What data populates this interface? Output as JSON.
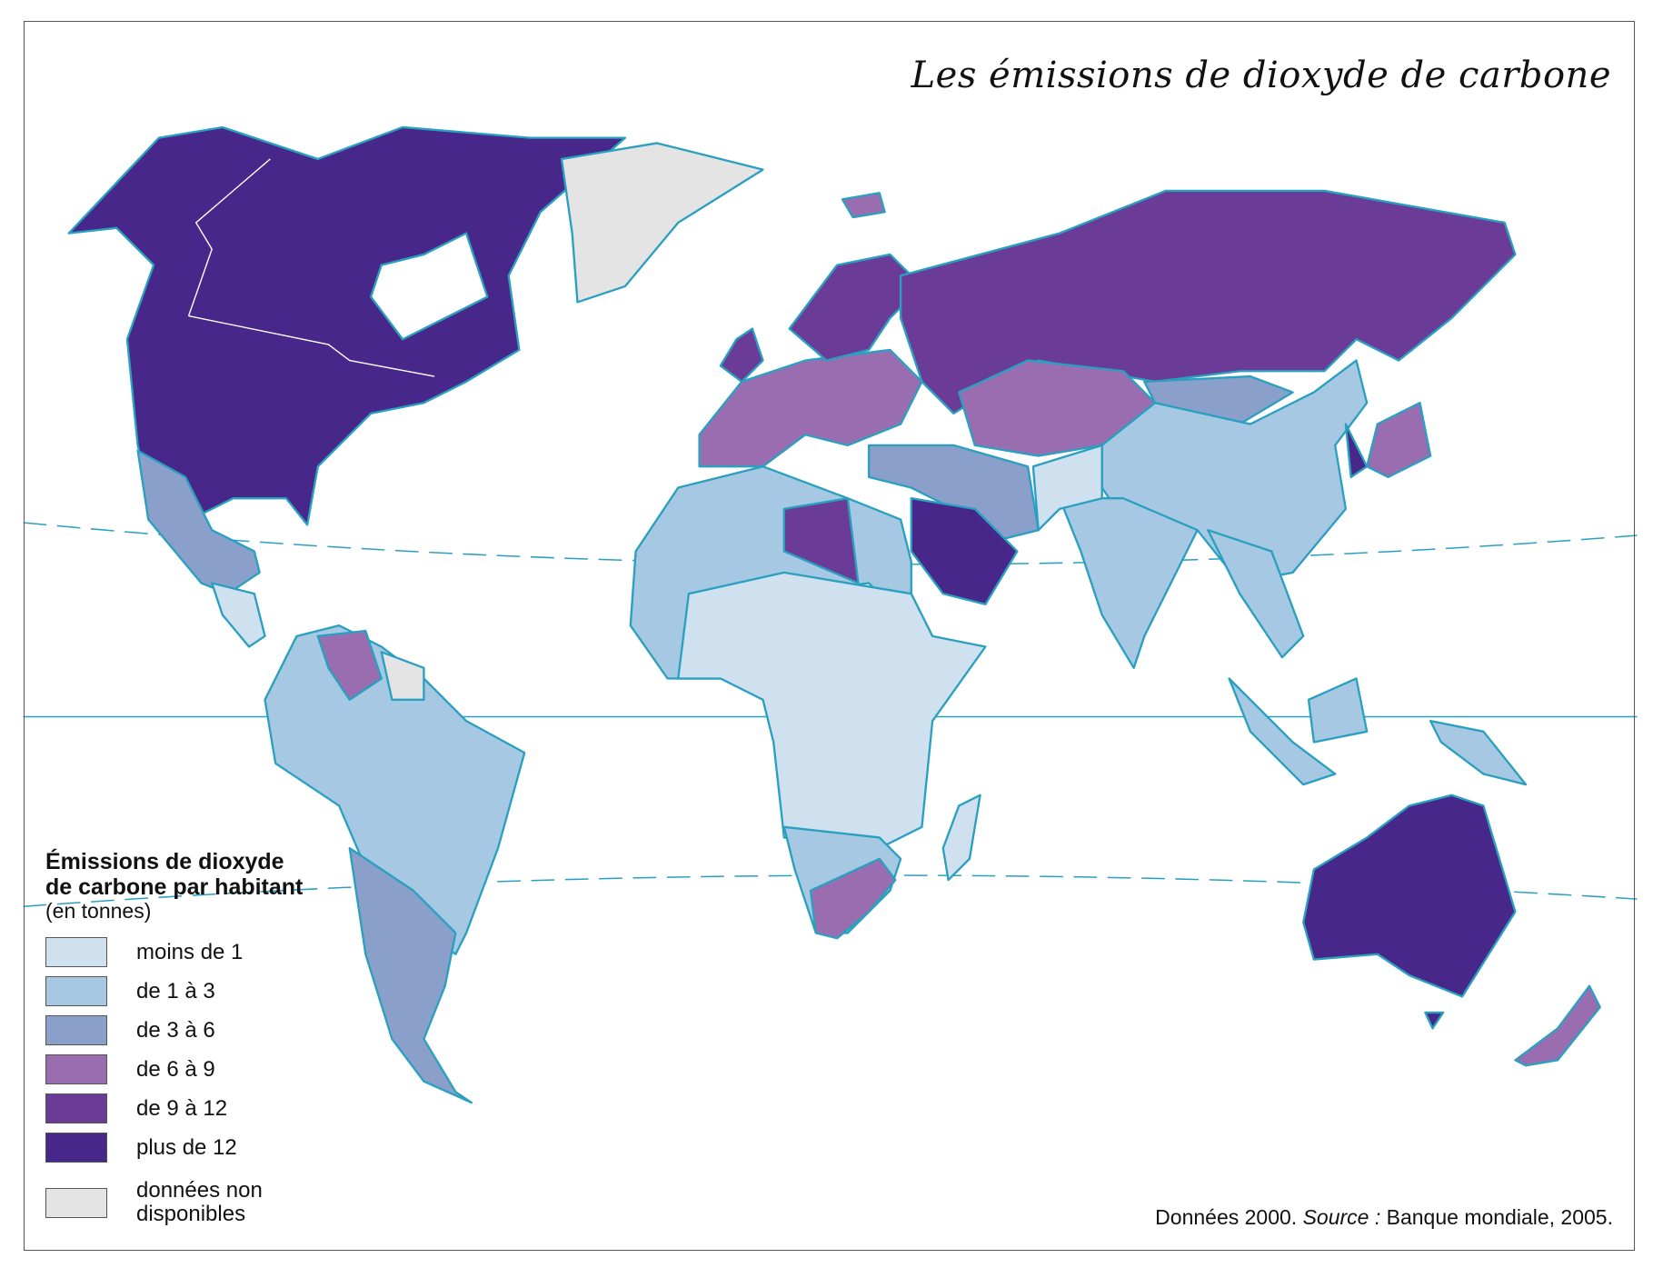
{
  "title": "Les émissions de dioxyde de carbone",
  "legend": {
    "title_line1": "Émissions de dioxyde",
    "title_line2": "de carbone par habitant",
    "unit": "(en tonnes)",
    "items": [
      {
        "label": "moins de 1",
        "color": "#cfe1ef"
      },
      {
        "label": "de 1 à 3",
        "color": "#a6c8e2"
      },
      {
        "label": "de 3 à 6",
        "color": "#8b9fcb"
      },
      {
        "label": "de 6 à 9",
        "color": "#9a6db0"
      },
      {
        "label": "de 9 à 12",
        "color": "#6a3c98"
      },
      {
        "label": "plus de 12",
        "color": "#47288a"
      }
    ],
    "na": {
      "label_line1": "données non",
      "label_line2": "disponibles",
      "color": "#e4e4e4"
    }
  },
  "source": {
    "prefix": "Données 2000.",
    "source_label": "Source :",
    "text": "Banque mondiale, 2005."
  },
  "colors": {
    "coastline": "#2aa0c0",
    "graticule": "#2aa0c0",
    "borders": "#ffffff"
  }
}
